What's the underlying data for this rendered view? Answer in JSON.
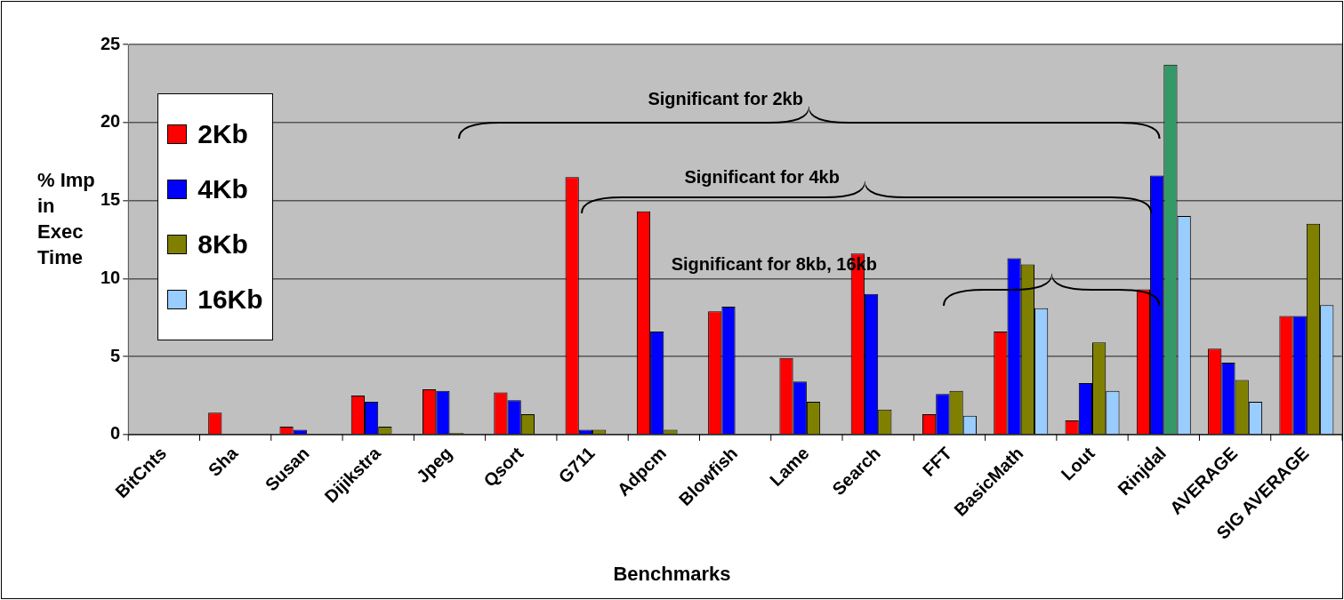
{
  "chart_data": {
    "type": "bar",
    "xlabel": "Benchmarks",
    "ylabel": "% Imp in Exec Time",
    "categories": [
      "BitCnts",
      "Sha",
      "Susan",
      "Dijikstra",
      "Jpeg",
      "Qsort",
      "G711",
      "Adpcm",
      "Blowfish",
      "Lame",
      "Search",
      "FFT",
      "BasicMath",
      "Lout",
      "Rinjdal",
      "AVERAGE",
      "SIG AVERAGE"
    ],
    "series": [
      {
        "name": "2Kb",
        "color": "#ff0000",
        "values": [
          0,
          1.4,
          0.5,
          2.5,
          2.9,
          2.7,
          16.5,
          14.3,
          7.9,
          4.9,
          11.6,
          1.3,
          6.6,
          0.9,
          9.3,
          5.5,
          7.6
        ]
      },
      {
        "name": "4Kb",
        "color": "#0000ff",
        "values": [
          0,
          0,
          0.3,
          2.1,
          2.8,
          2.2,
          0.3,
          6.6,
          8.2,
          3.4,
          9.0,
          2.6,
          11.3,
          3.3,
          16.6,
          4.6,
          7.6
        ]
      },
      {
        "name": "8Kb",
        "color": "#808000",
        "colors": [
          "#808000",
          "#808000",
          "#808000",
          "#808000",
          "#808000",
          "#808000",
          "#808000",
          "#808000",
          "#808000",
          "#808000",
          "#808000",
          "#808000",
          "#808000",
          "#808000",
          "#339966",
          "#808000",
          "#808000"
        ],
        "values": [
          0,
          0,
          0,
          0.5,
          0.1,
          1.3,
          0.3,
          0.3,
          0,
          2.1,
          1.6,
          2.8,
          10.9,
          5.9,
          23.7,
          3.5,
          13.5
        ]
      },
      {
        "name": "16Kb",
        "color": "#99ccff",
        "values": [
          0,
          0,
          0,
          0,
          null,
          0,
          0,
          0,
          0,
          0,
          null,
          1.2,
          8.1,
          2.8,
          14.0,
          2.1,
          8.3
        ]
      }
    ],
    "ylim": [
      0,
      25
    ],
    "yticks": [
      0,
      5,
      10,
      15,
      20,
      25
    ],
    "grid": "y",
    "legend": "left",
    "annotations": [
      "Significant for 2kb",
      "Significant for 4kb",
      "Significant for 8kb, 16kb"
    ]
  }
}
